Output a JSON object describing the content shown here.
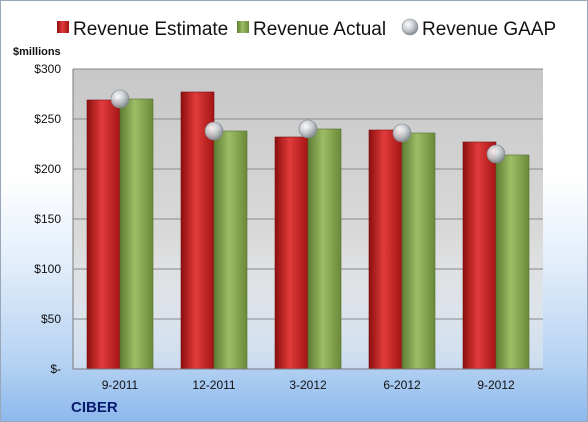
{
  "chart_data": {
    "type": "bar",
    "unit_label": "$millions",
    "company": "CIBER",
    "categories": [
      "9-2011",
      "12-2011",
      "3-2012",
      "6-2012",
      "9-2012"
    ],
    "series": [
      {
        "name": "Revenue Estimate",
        "type": "bar",
        "color": "#d42a2a",
        "values": [
          269,
          277,
          232,
          239,
          227
        ]
      },
      {
        "name": "Revenue Actual",
        "type": "bar",
        "color": "#8fae5a",
        "values": [
          270,
          238,
          240,
          236,
          214
        ]
      },
      {
        "name": "Revenue GAAP",
        "type": "marker",
        "color": "#c9ced6",
        "values": [
          270,
          238,
          240,
          236,
          215
        ]
      }
    ],
    "ylim": [
      0,
      300
    ],
    "yticks": [
      0,
      50,
      100,
      150,
      200,
      250,
      300
    ],
    "ytick_labels": [
      "$-",
      "$50",
      "$100",
      "$150",
      "$200",
      "$250",
      "$300"
    ],
    "grid": true,
    "legend_position": "top"
  }
}
